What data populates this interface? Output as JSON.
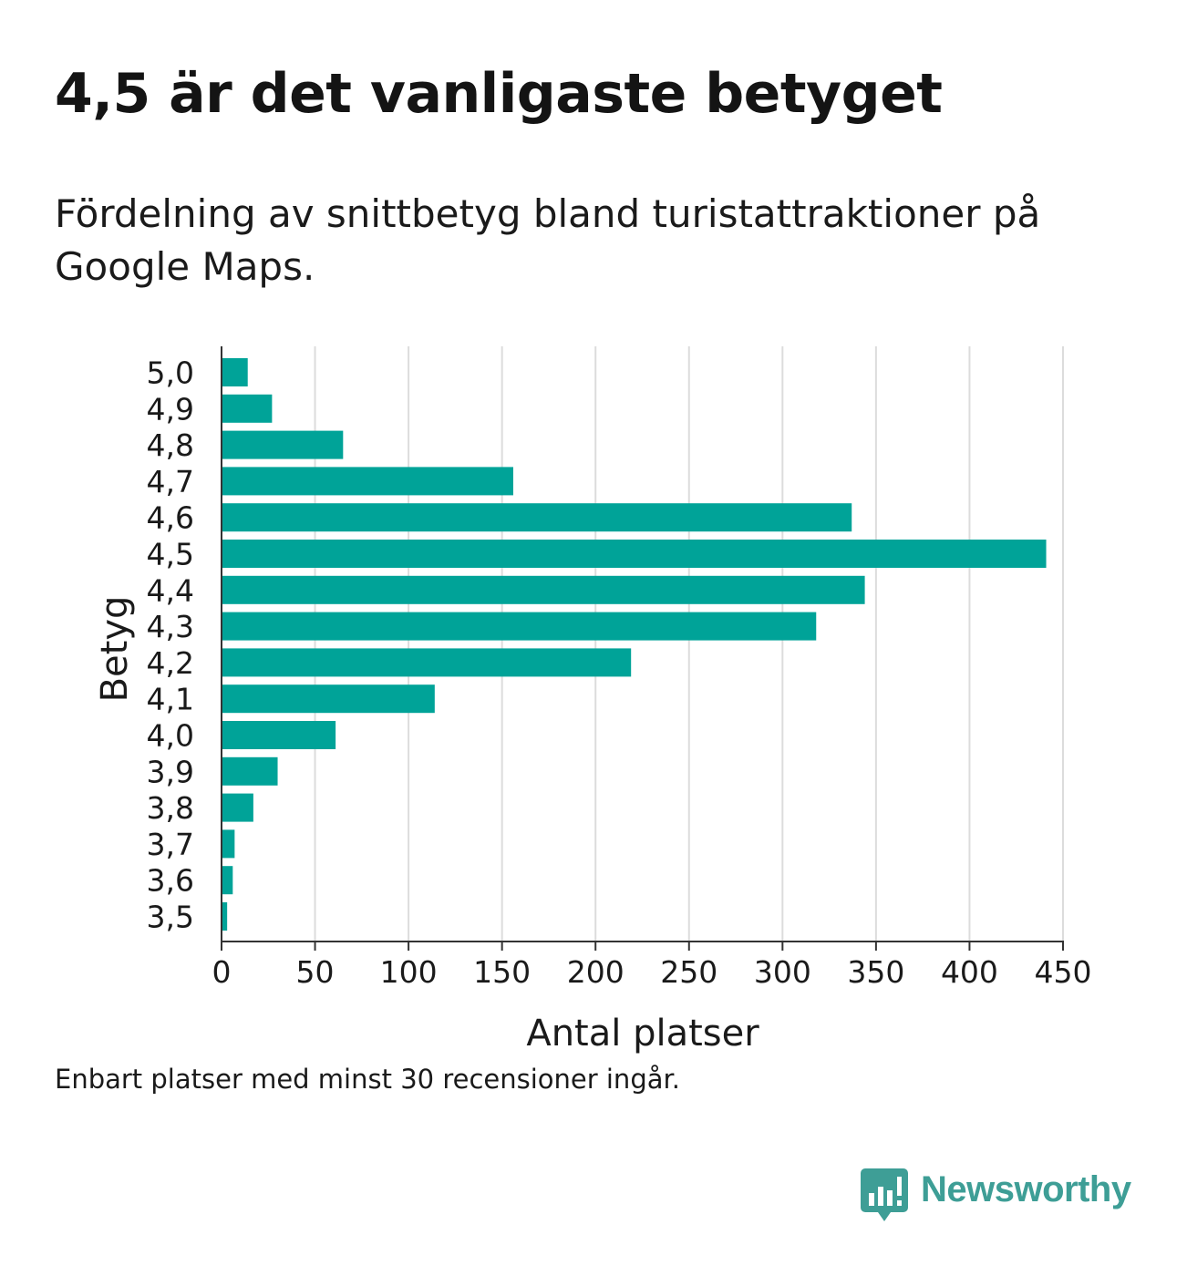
{
  "title": "4,5 är det vanligaste betyget",
  "subtitle": "Fördelning av snittbetyg bland turistattraktioner på Google Maps.",
  "footnote": "Enbart platser med minst 30 recensioner ingår.",
  "brand": {
    "name": "Newsworthy",
    "logo_icon": "chart-speech-bubble-icon",
    "color": "#3e9e96"
  },
  "colors": {
    "bar": "#00a398",
    "grid": "#dcdcdc",
    "axis": "#333333",
    "text": "#1a1a1a"
  },
  "chart_data": {
    "type": "bar",
    "orientation": "horizontal",
    "categories": [
      "5,0",
      "4,9",
      "4,8",
      "4,7",
      "4,6",
      "4,5",
      "4,4",
      "4,3",
      "4,2",
      "4,1",
      "4,0",
      "3,9",
      "3,8",
      "3,7",
      "3,6",
      "3,5"
    ],
    "values": [
      14,
      27,
      65,
      156,
      337,
      441,
      344,
      318,
      219,
      114,
      61,
      30,
      17,
      7,
      6,
      3
    ],
    "xlabel": "Antal platser",
    "ylabel": "Betyg",
    "xlim": [
      0,
      450
    ],
    "xticks": [
      0,
      50,
      100,
      150,
      200,
      250,
      300,
      350,
      400,
      450
    ],
    "grid": true,
    "legend": "none"
  }
}
